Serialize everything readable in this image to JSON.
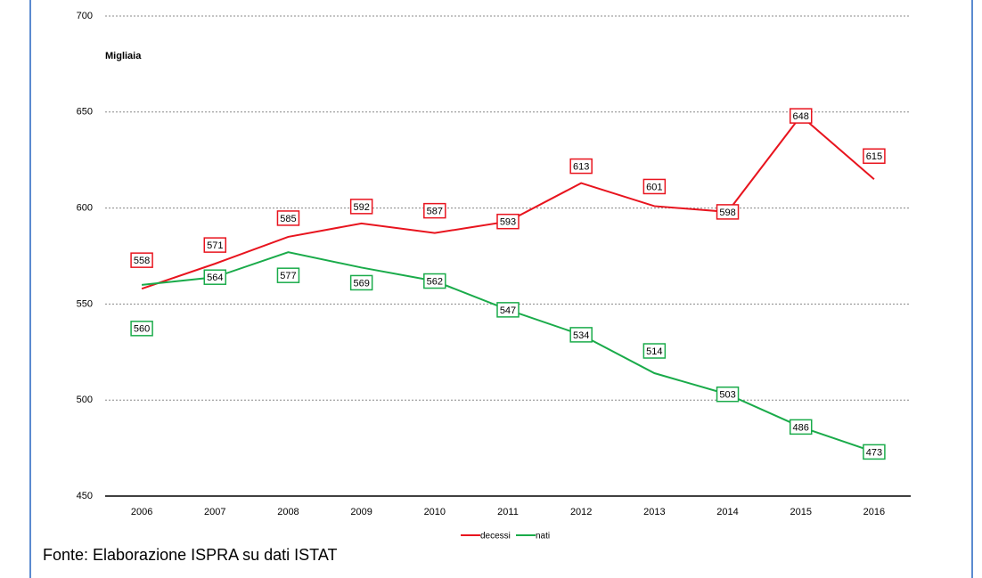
{
  "chart_data": {
    "type": "line",
    "y_label": "Migliaia",
    "categories": [
      "2006",
      "2007",
      "2008",
      "2009",
      "2010",
      "2011",
      "2012",
      "2013",
      "2014",
      "2015",
      "2016"
    ],
    "series": [
      {
        "name": "decessi",
        "color": "#e8141e",
        "values": [
          558,
          571,
          585,
          592,
          587,
          593,
          613,
          601,
          598,
          648,
          615
        ]
      },
      {
        "name": "nati",
        "color": "#1aab4a",
        "values": [
          560,
          564,
          577,
          569,
          562,
          547,
          534,
          514,
          503,
          486,
          473
        ]
      }
    ],
    "ylim": [
      450,
      700
    ],
    "yticks": [
      450,
      500,
      550,
      600,
      650,
      700
    ],
    "grid": true,
    "legend": "bottom",
    "source": "Fonte: Elaborazione ISPRA su dati ISTAT"
  }
}
